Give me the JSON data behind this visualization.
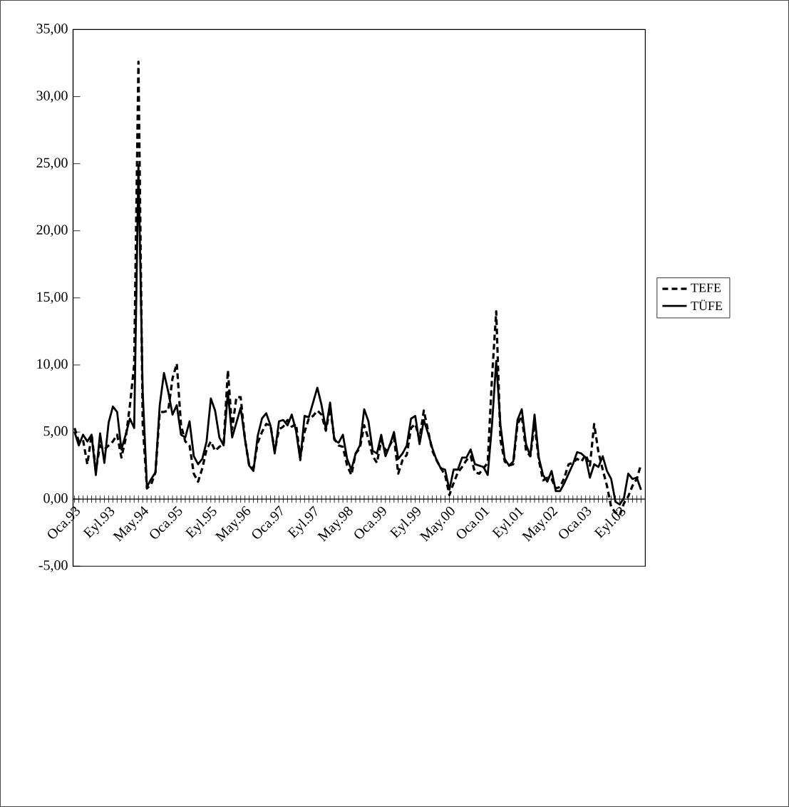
{
  "chart_data": {
    "type": "line",
    "categories": [
      "Oca.93",
      null,
      null,
      null,
      null,
      null,
      null,
      null,
      "Eyl.93",
      null,
      null,
      null,
      null,
      null,
      null,
      null,
      "May.94",
      null,
      null,
      null,
      null,
      null,
      null,
      null,
      "Oca.95",
      null,
      null,
      null,
      null,
      null,
      null,
      null,
      "Eyl.95",
      null,
      null,
      null,
      null,
      null,
      null,
      null,
      "May.96",
      null,
      null,
      null,
      null,
      null,
      null,
      null,
      "Oca.97",
      null,
      null,
      null,
      null,
      null,
      null,
      null,
      "Eyl.97",
      null,
      null,
      null,
      null,
      null,
      null,
      null,
      "May.98",
      null,
      null,
      null,
      null,
      null,
      null,
      null,
      "Oca.99",
      null,
      null,
      null,
      null,
      null,
      null,
      null,
      "Eyl.99",
      null,
      null,
      null,
      null,
      null,
      null,
      null,
      "May.00",
      null,
      null,
      null,
      null,
      null,
      null,
      null,
      "Oca.01",
      null,
      null,
      null,
      null,
      null,
      null,
      null,
      "Eyl.01",
      null,
      null,
      null,
      null,
      null,
      null,
      null,
      "May.02",
      null,
      null,
      null,
      null,
      null,
      null,
      null,
      "Oca.03",
      null,
      null,
      null,
      null,
      null,
      null,
      null,
      "Eyl.03",
      null,
      null,
      null,
      null,
      null
    ],
    "series": [
      {
        "name": "TEFE",
        "color": "#000000",
        "line_style": "dashed",
        "values": [
          5.3,
          4.3,
          4.4,
          2.6,
          4.8,
          2.2,
          4.0,
          3.7,
          4.0,
          4.3,
          4.8,
          3.1,
          4.5,
          7.0,
          10.0,
          32.6,
          5.6,
          0.8,
          1.1,
          2.0,
          6.5,
          6.5,
          6.6,
          9.0,
          10.1,
          5.5,
          4.3,
          4.0,
          1.9,
          1.3,
          2.3,
          3.7,
          4.3,
          3.6,
          3.9,
          4.1,
          9.6,
          5.2,
          7.6,
          7.6,
          4.5,
          2.5,
          2.3,
          4.2,
          5.0,
          5.6,
          5.5,
          3.6,
          5.2,
          5.4,
          5.9,
          5.4,
          5.6,
          3.1,
          5.0,
          6.0,
          6.2,
          6.6,
          6.3,
          5.1,
          6.8,
          4.5,
          4.0,
          3.9,
          2.5,
          1.8,
          3.4,
          3.8,
          5.5,
          4.5,
          3.2,
          2.7,
          4.4,
          3.6,
          4.0,
          4.6,
          1.9,
          2.9,
          3.3,
          5.3,
          5.6,
          4.5,
          6.6,
          5.1,
          3.6,
          2.9,
          2.3,
          1.8,
          0.3,
          1.2,
          2.0,
          2.4,
          2.9,
          3.2,
          2.0,
          1.9,
          2.3,
          2.7,
          9.0,
          14.0,
          4.4,
          2.8,
          2.5,
          2.6,
          5.6,
          6.2,
          3.6,
          3.2,
          5.6,
          2.9,
          1.4,
          1.6,
          1.5,
          0.8,
          0.9,
          1.6,
          2.6,
          2.7,
          3.0,
          2.8,
          3.3,
          2.5,
          5.6,
          3.5,
          2.2,
          1.0,
          -0.6,
          -1.0,
          -1.2,
          -0.3,
          0.2,
          1.0,
          1.5,
          2.6
        ]
      },
      {
        "name": "TÜFE",
        "color": "#000000",
        "line_style": "solid",
        "values": [
          5.0,
          4.0,
          4.8,
          4.3,
          4.8,
          1.8,
          4.9,
          2.7,
          5.7,
          6.9,
          6.5,
          3.7,
          4.8,
          6.0,
          5.3,
          24.9,
          8.0,
          0.9,
          1.5,
          2.0,
          7.0,
          9.4,
          8.0,
          6.3,
          7.0,
          4.8,
          4.6,
          5.8,
          3.2,
          2.6,
          3.0,
          4.3,
          7.5,
          6.6,
          4.6,
          4.0,
          8.0,
          4.6,
          5.7,
          6.8,
          4.5,
          2.5,
          2.1,
          4.7,
          6.0,
          6.4,
          5.5,
          3.4,
          5.8,
          5.9,
          5.5,
          6.3,
          5.1,
          2.9,
          6.2,
          6.1,
          7.2,
          8.3,
          7.0,
          5.2,
          7.2,
          4.4,
          4.2,
          4.8,
          3.0,
          2.2,
          3.4,
          4.0,
          6.7,
          5.8,
          3.6,
          3.4,
          4.8,
          3.2,
          4.0,
          5.0,
          3.0,
          3.4,
          4.0,
          6.0,
          6.2,
          4.1,
          5.9,
          4.9,
          3.8,
          2.9,
          2.3,
          2.2,
          0.7,
          2.2,
          2.2,
          3.1,
          3.1,
          3.7,
          2.6,
          2.5,
          2.4,
          1.8,
          5.5,
          10.3,
          5.5,
          3.0,
          2.5,
          2.8,
          5.9,
          6.7,
          4.1,
          3.2,
          6.3,
          3.1,
          1.8,
          1.3,
          2.1,
          0.6,
          0.6,
          1.2,
          1.9,
          2.6,
          3.5,
          3.4,
          3.1,
          1.6,
          2.6,
          2.4,
          3.2,
          2.1,
          1.5,
          -0.2,
          -0.4,
          0.1,
          1.9,
          1.5,
          1.6,
          0.7
        ]
      }
    ],
    "ylim": [
      -5,
      35
    ],
    "yticks": [
      {
        "value": -5,
        "label": "-5,00"
      },
      {
        "value": 0,
        "label": "0,00"
      },
      {
        "value": 5,
        "label": "5,00"
      },
      {
        "value": 10,
        "label": "10,00"
      },
      {
        "value": 15,
        "label": "15,00"
      },
      {
        "value": 20,
        "label": "20,00"
      },
      {
        "value": 25,
        "label": "25,00"
      },
      {
        "value": 30,
        "label": "30,00"
      },
      {
        "value": 35,
        "label": "35,00"
      }
    ],
    "grid": false,
    "legend": "right",
    "marker": "none"
  }
}
